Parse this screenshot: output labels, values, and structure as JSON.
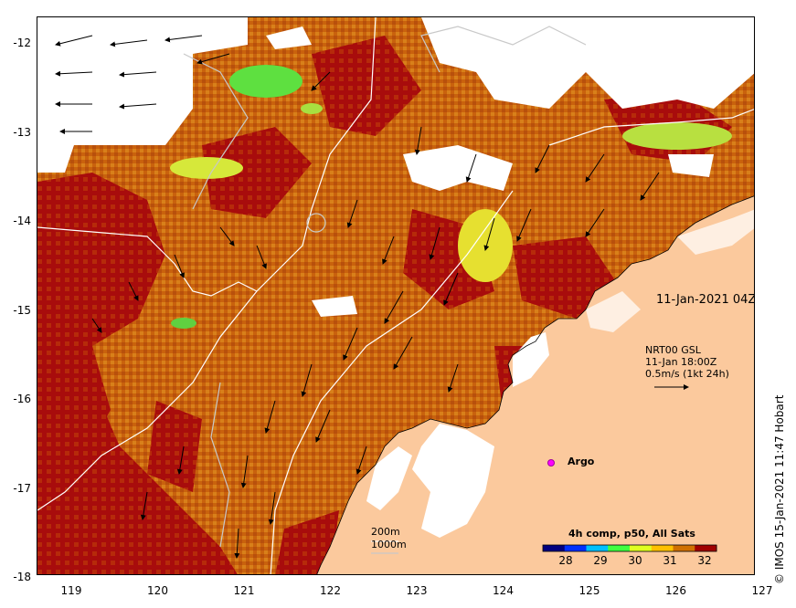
{
  "map": {
    "date_label": "11-Jan-2021 04Z",
    "current_legend": {
      "line1": "NRT00 GSL",
      "line2": "11-Jan 18:00Z",
      "line3": "0.5m/s (1kt 24h)"
    },
    "argo_label": "Argo",
    "depth_legend": {
      "contour1": "200m",
      "contour2": "1000m"
    },
    "colorbar": {
      "title": "4h comp, p50, All Sats",
      "ticks": [
        "28",
        "29",
        "30",
        "31",
        "32"
      ],
      "colors": [
        "#000080",
        "#0030ff",
        "#00c0ff",
        "#40ff40",
        "#e0ff20",
        "#ffc000",
        "#d07000",
        "#a00000"
      ]
    },
    "credit": "© IMOS 15-Jan-2021 11:47 Hobart",
    "y_axis_labels": [
      "-12",
      "-13",
      "-14",
      "-15",
      "-16",
      "-17",
      "-18"
    ],
    "x_axis_labels": [
      "119",
      "120",
      "121",
      "122",
      "123",
      "124",
      "125",
      "126",
      "127"
    ],
    "colors": {
      "land": "#fbc99d",
      "ocean_warm": "#d4700f",
      "ocean_hot": "#a80c0c",
      "cloud": "#ffffff"
    }
  }
}
